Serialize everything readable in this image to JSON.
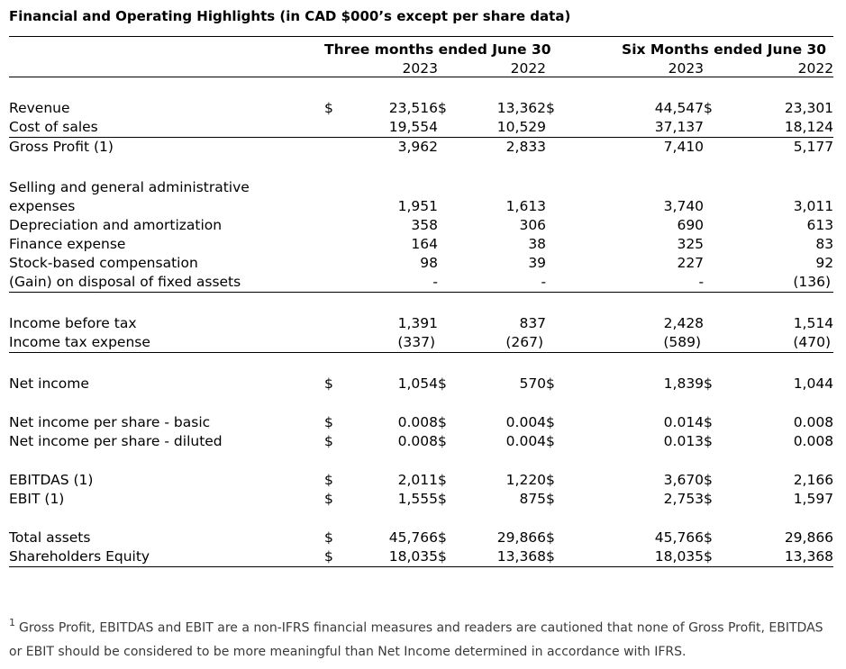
{
  "title": "Financial and Operating Highlights (in CAD $000’s except per share data)",
  "table": {
    "currency_symbol": "$",
    "col_groups": [
      {
        "label": "Three months ended June 30",
        "years": [
          "2023",
          "2022"
        ]
      },
      {
        "label": "Six Months ended June 30",
        "years": [
          "2023",
          "2022"
        ]
      }
    ],
    "rows": [
      {
        "spacer": 24
      },
      {
        "label": "Revenue",
        "dollar": true,
        "values": [
          "23,516",
          "13,362",
          "44,547",
          "23,301"
        ]
      },
      {
        "label": "Cost of sales",
        "values": [
          "19,554",
          "10,529",
          "37,137",
          "18,124"
        ],
        "underline": true
      },
      {
        "label": "Gross Profit (1)",
        "values": [
          "3,962",
          "2,833",
          "7,410",
          "5,177"
        ]
      },
      {
        "spacer": 24
      },
      {
        "label": "Selling and general administrative"
      },
      {
        "label": "expenses",
        "values": [
          "1,951",
          "1,613",
          "3,740",
          "3,011"
        ]
      },
      {
        "label": "Depreciation and amortization",
        "values": [
          "358",
          "306",
          "690",
          "613"
        ]
      },
      {
        "label": "Finance expense",
        "values": [
          "164",
          "38",
          "325",
          "83"
        ]
      },
      {
        "label": "Stock-based compensation",
        "values": [
          "98",
          "39",
          "227",
          "92"
        ]
      },
      {
        "label": "(Gain) on disposal of fixed assets",
        "values": [
          "-",
          "-",
          "-",
          "(136)"
        ],
        "underline": true
      },
      {
        "spacer": 24
      },
      {
        "label": "Income before tax",
        "values": [
          "1,391",
          "837",
          "2,428",
          "1,514"
        ]
      },
      {
        "label": "Income tax expense",
        "values": [
          "(337)",
          "(267)",
          "(589)",
          "(470)"
        ],
        "underline": true
      },
      {
        "spacer": 24
      },
      {
        "label": "Net income",
        "dollar": true,
        "values": [
          "1,054",
          "570",
          "1,839",
          "1,044"
        ]
      },
      {
        "spacer": 22
      },
      {
        "label": "Net income per share - basic",
        "dollar": true,
        "values": [
          "0.008",
          "0.004",
          "0.014",
          "0.008"
        ]
      },
      {
        "label": "Net income per share - diluted",
        "dollar": true,
        "values": [
          "0.008",
          "0.004",
          "0.013",
          "0.008"
        ]
      },
      {
        "spacer": 22
      },
      {
        "label": "EBITDAS (1)",
        "dollar": true,
        "values": [
          "2,011",
          "1,220",
          "3,670",
          "2,166"
        ]
      },
      {
        "label": "EBIT (1)",
        "dollar": true,
        "values": [
          "1,555",
          "875",
          "2,753",
          "1,597"
        ]
      },
      {
        "spacer": 22
      },
      {
        "label": "Total assets",
        "dollar": true,
        "values": [
          "45,766",
          "29,866",
          "45,766",
          "29,866"
        ]
      },
      {
        "label": "Shareholders Equity",
        "dollar": true,
        "values": [
          "18,035",
          "13,368",
          "18,035",
          "13,368"
        ],
        "underline": true
      }
    ]
  },
  "footnote": {
    "marker": "1",
    "line1": "Gross Profit, EBITDAS and EBIT are a non-IFRS financial measures and readers are cautioned that none of Gross Profit, EBITDAS",
    "line2": "or EBIT should be considered to be more meaningful than Net Income determined in accordance with IFRS."
  }
}
